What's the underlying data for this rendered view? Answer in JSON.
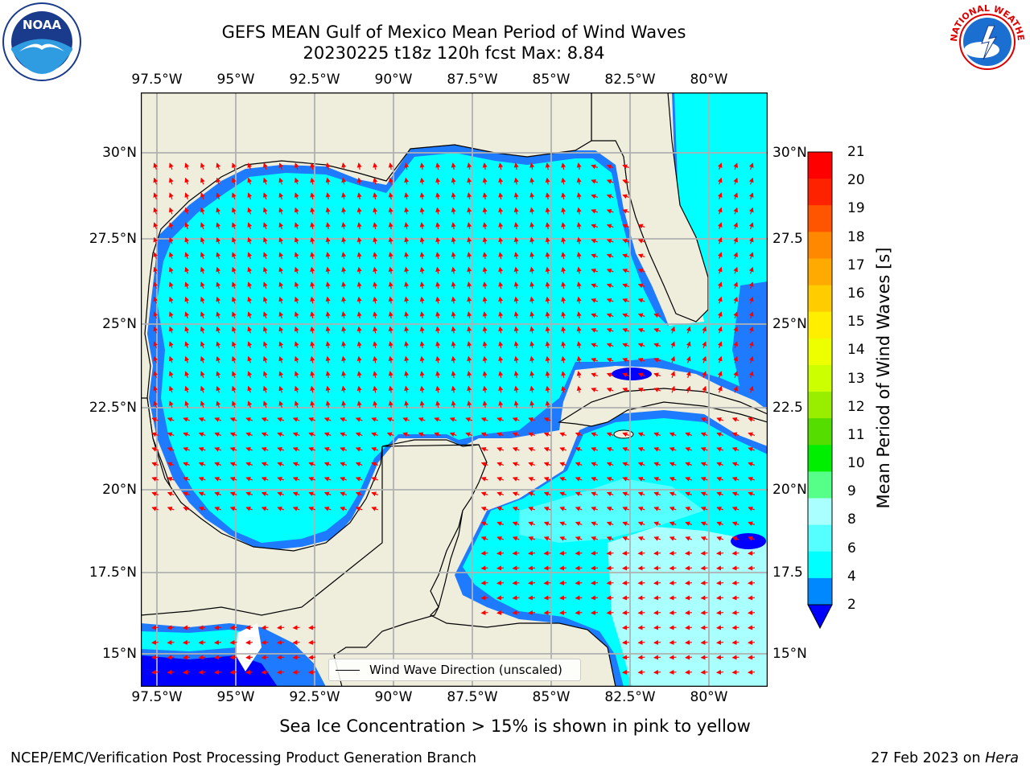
{
  "title": {
    "line1": "GEFS MEAN Gulf of Mexico Mean Period of Wind Waves",
    "line2": "20230225 t18z 120h fcst   Max: 8.84"
  },
  "lon_labels": [
    "97.5°W",
    "95°W",
    "92.5°W",
    "90°W",
    "87.5°W",
    "85°W",
    "82.5°W",
    "80°W"
  ],
  "lat_labels": [
    "30°N",
    "27.5°N",
    "25°N",
    "22.5°N",
    "20°N",
    "17.5°N",
    "15°N"
  ],
  "lat_labels_right": [
    "30°N",
    "27.5",
    "25°N",
    "22.5",
    "20°N",
    "17.5",
    "15°N"
  ],
  "colorbar": {
    "title": "Mean Period of Wind Waves [s]",
    "ticks": [
      "21",
      "20",
      "19",
      "18",
      "17",
      "16",
      "15",
      "14",
      "13",
      "12",
      "11",
      "10",
      "9",
      "8",
      "6",
      "4",
      "2"
    ],
    "colors": [
      "#ff0000",
      "#ff2200",
      "#ff5500",
      "#ff8800",
      "#ffaa00",
      "#ffcc00",
      "#ffee00",
      "#eeff00",
      "#ccff00",
      "#99ee00",
      "#55dd00",
      "#00ee00",
      "#55ff88",
      "#aaffff",
      "#55ffff",
      "#00ffff",
      "#0088ff",
      "#0000ff"
    ]
  },
  "legend": {
    "label": "Wind Wave Direction (unscaled)"
  },
  "sea_ice_note": "Sea Ice Concentration > 15% is shown in pink to yellow",
  "footer": {
    "left": "NCEP/EMC/Verification Post Processing Product Generation Branch",
    "right_prefix": "27 Feb 2023 on ",
    "right_machine": "Hera"
  },
  "logos": {
    "left": "NOAA",
    "right": "NATIONAL WEATHER SERVICE"
  },
  "map_colors": {
    "land": "#efeddc",
    "cyan": "#00ffff",
    "light_cyan": "#55ffff",
    "pale_cyan": "#aaffff",
    "blue": "#1e7bff",
    "dark_blue": "#0000ff",
    "arrow": "#ff0000"
  }
}
